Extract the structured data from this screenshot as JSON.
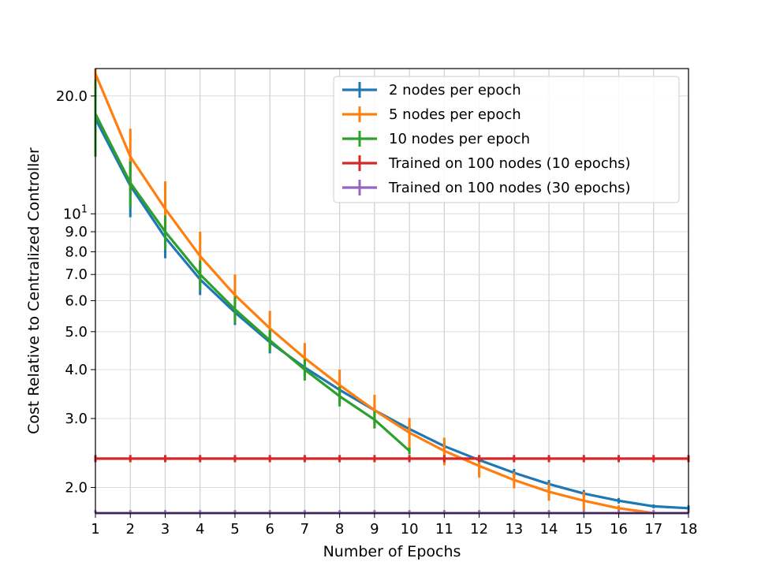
{
  "chart_data": {
    "type": "line",
    "title": "",
    "xlabel": "Number of Epochs",
    "ylabel": "Cost Relative to Centralized Controller",
    "yscale": "log",
    "xlim": [
      1,
      18
    ],
    "ylim": [
      1.72,
      23.5
    ],
    "grid": true,
    "legend_position": "top-right",
    "x_ticks": [
      1,
      2,
      3,
      4,
      5,
      6,
      7,
      8,
      9,
      10,
      11,
      12,
      13,
      14,
      15,
      16,
      17,
      18
    ],
    "x_tick_labels": [
      "1",
      "2",
      "3",
      "4",
      "5",
      "6",
      "7",
      "8",
      "9",
      "10",
      "11",
      "12",
      "13",
      "14",
      "15",
      "16",
      "17",
      "18"
    ],
    "y_ticks": [
      {
        "value": 2.0,
        "label": "2.0"
      },
      {
        "value": 3.0,
        "label": "3.0"
      },
      {
        "value": 4.0,
        "label": "4.0"
      },
      {
        "value": 5.0,
        "label": "5.0"
      },
      {
        "value": 6.0,
        "label": "6.0"
      },
      {
        "value": 7.0,
        "label": "7.0"
      },
      {
        "value": 8.0,
        "label": "8.0"
      },
      {
        "value": 9.0,
        "label": "9.0"
      },
      {
        "value": 10.0,
        "label": "10",
        "superscript": "1"
      },
      {
        "value": 20.0,
        "label": "20.0"
      }
    ],
    "series": [
      {
        "name": "2 nodes per epoch",
        "color": "#1f77b4",
        "x": [
          1,
          2,
          3,
          4,
          5,
          6,
          7,
          8,
          9,
          10,
          11,
          12,
          13,
          14,
          15,
          16,
          17,
          18
        ],
        "values": [
          17.5,
          11.8,
          8.7,
          6.8,
          5.6,
          4.7,
          4.05,
          3.55,
          3.15,
          2.82,
          2.55,
          2.35,
          2.18,
          2.04,
          1.93,
          1.85,
          1.79,
          1.77
        ],
        "err": [
          3.2,
          2.0,
          1.0,
          0.6,
          0.4,
          0.3,
          0.2,
          0.15,
          0.1,
          0.08,
          0.06,
          0.05,
          0.05,
          0.05,
          0.04,
          0.03,
          0.02,
          0.03
        ]
      },
      {
        "name": "5 nodes per epoch",
        "color": "#ff7f0e",
        "x": [
          1,
          2,
          3,
          4,
          5,
          6,
          7,
          8,
          9,
          10,
          11,
          12,
          13,
          14,
          15,
          16,
          17
        ],
        "values": [
          22.8,
          14.0,
          10.3,
          7.8,
          6.2,
          5.1,
          4.28,
          3.65,
          3.15,
          2.76,
          2.48,
          2.27,
          2.09,
          1.95,
          1.85,
          1.77,
          1.72
        ],
        "err": [
          2.5,
          2.5,
          1.8,
          1.2,
          0.8,
          0.55,
          0.4,
          0.35,
          0.3,
          0.25,
          0.2,
          0.15,
          0.1,
          0.1,
          0.1,
          0.03,
          0.02
        ]
      },
      {
        "name": "10 nodes per epoch",
        "color": "#2ca02c",
        "x": [
          1,
          2,
          3,
          4,
          5,
          6,
          7,
          8,
          9,
          10
        ],
        "values": [
          18.0,
          12.0,
          9.0,
          7.0,
          5.7,
          4.75,
          4.0,
          3.42,
          2.98,
          2.48
        ],
        "err": [
          4.0,
          1.6,
          0.9,
          0.6,
          0.45,
          0.3,
          0.25,
          0.2,
          0.15,
          0.05
        ]
      },
      {
        "name": "Trained on 100 nodes (10 epochs)",
        "color": "#d62728",
        "x": [
          1,
          2,
          3,
          4,
          5,
          6,
          7,
          8,
          9,
          10,
          11,
          12,
          13,
          14,
          15,
          16,
          17,
          18
        ],
        "values": [
          2.37,
          2.37,
          2.37,
          2.37,
          2.37,
          2.37,
          2.37,
          2.37,
          2.37,
          2.37,
          2.37,
          2.37,
          2.37,
          2.37,
          2.37,
          2.37,
          2.37,
          2.37
        ],
        "err": [
          0.05,
          0.05,
          0.05,
          0.05,
          0.05,
          0.05,
          0.05,
          0.05,
          0.05,
          0.05,
          0.05,
          0.05,
          0.05,
          0.05,
          0.05,
          0.05,
          0.05,
          0.05
        ]
      },
      {
        "name": "Trained on 100 nodes (30 epochs)",
        "color": "#9467bd",
        "x": [
          1,
          2,
          3,
          4,
          5,
          6,
          7,
          8,
          9,
          10,
          11,
          12,
          13,
          14,
          15,
          16,
          17,
          18
        ],
        "values": [
          1.72,
          1.72,
          1.72,
          1.72,
          1.72,
          1.72,
          1.72,
          1.72,
          1.72,
          1.72,
          1.72,
          1.72,
          1.72,
          1.72,
          1.72,
          1.72,
          1.72,
          1.72
        ],
        "err": [
          0.03,
          0.03,
          0.03,
          0.03,
          0.03,
          0.03,
          0.03,
          0.03,
          0.03,
          0.03,
          0.03,
          0.03,
          0.03,
          0.03,
          0.03,
          0.03,
          0.03,
          0.03
        ]
      }
    ]
  }
}
